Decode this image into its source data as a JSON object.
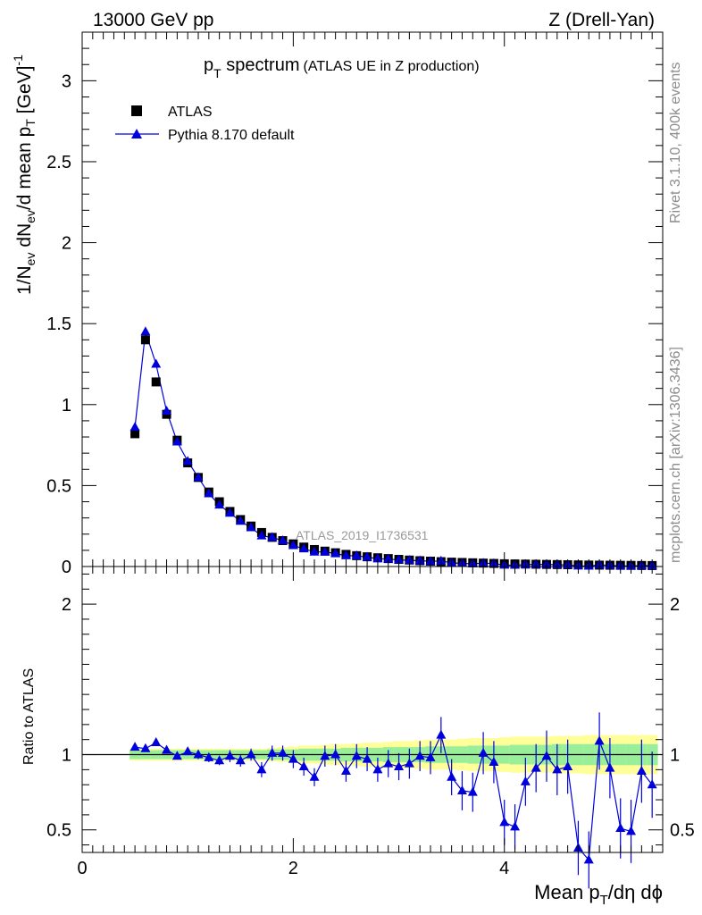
{
  "header": {
    "energy_label": "13000 GeV pp",
    "process_label": "Z (Drell-Yan)"
  },
  "side": {
    "rivet_label": "Rivet 3.1.10,  400k events",
    "mcplots_label": "mcplots.cern.ch [arXiv:1306.3436]"
  },
  "chart_data": {
    "type": "scatter",
    "title_main": "p",
    "title_sub": "T",
    "title_rest": " spectrum",
    "title_note": "(ATLAS UE in Z production)",
    "analysis_label": "ATLAS_2019_I1736531",
    "xlabel": {
      "a": "Mean p",
      "sub": "T",
      "b": "/dη dϕ"
    },
    "ylabel": {
      "p1": "1/N",
      "s1": "ev",
      "p2": " dN",
      "s2": "ev",
      "p3": "/d mean p",
      "s3": "T",
      "p4": " [GeV]",
      "sup": "-1"
    },
    "ratio_ylabel": "Ratio to ATLAS",
    "xlim": [
      0,
      5.5
    ],
    "ylim": [
      0,
      3.3
    ],
    "ratio_ylim": [
      0.35,
      2.25
    ],
    "xticks": [
      {
        "v": 0,
        "label": "0"
      },
      {
        "v": 2,
        "label": "2"
      },
      {
        "v": 4,
        "label": "4"
      }
    ],
    "yticks": [
      {
        "v": 0,
        "label": "0"
      },
      {
        "v": 0.5,
        "label": "0.5"
      },
      {
        "v": 1,
        "label": "1"
      },
      {
        "v": 1.5,
        "label": "1.5"
      },
      {
        "v": 2,
        "label": "2"
      },
      {
        "v": 2.5,
        "label": "2.5"
      },
      {
        "v": 3,
        "label": "3"
      }
    ],
    "ratio_yticks": [
      {
        "v": 0.5,
        "label": "0.5"
      },
      {
        "v": 1,
        "label": "1"
      },
      {
        "v": 2,
        "label": "2"
      }
    ],
    "legend": [
      {
        "name": "ATLAS",
        "marker": "square",
        "color": "#000000"
      },
      {
        "name": "Pythia 8.170 default",
        "marker": "triangle",
        "color": "#0000dd"
      }
    ],
    "x": [
      0.5,
      0.6,
      0.7,
      0.8,
      0.9,
      1.0,
      1.1,
      1.2,
      1.3,
      1.4,
      1.5,
      1.6,
      1.7,
      1.8,
      1.9,
      2.0,
      2.1,
      2.2,
      2.3,
      2.4,
      2.5,
      2.6,
      2.7,
      2.8,
      2.9,
      3.0,
      3.1,
      3.2,
      3.3,
      3.4,
      3.5,
      3.6,
      3.7,
      3.8,
      3.9,
      4.0,
      4.1,
      4.2,
      4.3,
      4.4,
      4.5,
      4.6,
      4.7,
      4.8,
      4.9,
      5.0,
      5.1,
      5.2,
      5.3,
      5.4
    ],
    "series": [
      {
        "name": "ATLAS",
        "values": [
          0.82,
          1.4,
          1.14,
          0.94,
          0.78,
          0.64,
          0.55,
          0.46,
          0.4,
          0.34,
          0.29,
          0.25,
          0.21,
          0.18,
          0.16,
          0.14,
          0.12,
          0.105,
          0.095,
          0.085,
          0.075,
          0.067,
          0.06,
          0.054,
          0.049,
          0.044,
          0.04,
          0.036,
          0.033,
          0.03,
          0.027,
          0.025,
          0.023,
          0.021,
          0.019,
          0.017,
          0.016,
          0.015,
          0.014,
          0.013,
          0.012,
          0.011,
          0.01,
          0.009,
          0.0085,
          0.008,
          0.0075,
          0.007,
          0.0065,
          0.006
        ]
      },
      {
        "name": "Pythia 8.170 default",
        "values": [
          0.86,
          1.45,
          1.25,
          0.96,
          0.77,
          0.65,
          0.55,
          0.45,
          0.38,
          0.33,
          0.28,
          0.24,
          0.19,
          0.18,
          0.16,
          0.13,
          0.11,
          0.09,
          0.09,
          0.08,
          0.067,
          0.066,
          0.058,
          0.048,
          0.046,
          0.041,
          0.038,
          0.036,
          0.032,
          0.034,
          0.023,
          0.019,
          0.017,
          0.021,
          0.018,
          0.009,
          0.008,
          0.012,
          0.013,
          0.013,
          0.011,
          0.01,
          0.004,
          0.003,
          0.0099,
          0.007,
          0.0038,
          0.0034,
          0.0058,
          0.0048
        ]
      }
    ],
    "ratio": [
      1.05,
      1.04,
      1.08,
      1.03,
      0.99,
      1.02,
      1.0,
      0.98,
      0.96,
      0.99,
      0.96,
      1.0,
      0.9,
      1.01,
      1.01,
      0.97,
      0.92,
      0.85,
      0.99,
      1.0,
      0.89,
      0.99,
      0.97,
      0.9,
      0.94,
      0.92,
      0.94,
      0.99,
      0.98,
      1.13,
      0.85,
      0.76,
      0.75,
      1.01,
      0.95,
      0.55,
      0.52,
      0.82,
      0.91,
      0.99,
      0.9,
      0.92,
      0.38,
      0.3,
      1.09,
      0.91,
      0.51,
      0.49,
      0.89,
      0.8
    ],
    "ratio_err": [
      0.02,
      0.02,
      0.02,
      0.02,
      0.02,
      0.02,
      0.03,
      0.03,
      0.03,
      0.04,
      0.04,
      0.04,
      0.05,
      0.05,
      0.05,
      0.06,
      0.06,
      0.06,
      0.07,
      0.07,
      0.07,
      0.08,
      0.08,
      0.08,
      0.09,
      0.09,
      0.1,
      0.1,
      0.11,
      0.12,
      0.12,
      0.13,
      0.13,
      0.14,
      0.14,
      0.15,
      0.15,
      0.16,
      0.16,
      0.17,
      0.17,
      0.18,
      0.18,
      0.19,
      0.19,
      0.2,
      0.2,
      0.21,
      0.21,
      0.22
    ],
    "band_inner": [
      0.03,
      0.03,
      0.03,
      0.03,
      0.03,
      0.03,
      0.03,
      0.03,
      0.03,
      0.03,
      0.03,
      0.03,
      0.03,
      0.035,
      0.035,
      0.035,
      0.04,
      0.04,
      0.04,
      0.04,
      0.045,
      0.045,
      0.045,
      0.045,
      0.05,
      0.05,
      0.05,
      0.05,
      0.055,
      0.055,
      0.055,
      0.055,
      0.06,
      0.06,
      0.06,
      0.06,
      0.065,
      0.065,
      0.065,
      0.065,
      0.07,
      0.07,
      0.07,
      0.07,
      0.07,
      0.07,
      0.07,
      0.07,
      0.07,
      0.07
    ],
    "band_outer": [
      0.04,
      0.04,
      0.04,
      0.04,
      0.04,
      0.04,
      0.04,
      0.04,
      0.04,
      0.04,
      0.04,
      0.04,
      0.04,
      0.045,
      0.05,
      0.055,
      0.06,
      0.06,
      0.065,
      0.07,
      0.07,
      0.075,
      0.08,
      0.08,
      0.085,
      0.09,
      0.09,
      0.095,
      0.1,
      0.1,
      0.1,
      0.105,
      0.11,
      0.11,
      0.11,
      0.115,
      0.12,
      0.12,
      0.12,
      0.12,
      0.125,
      0.125,
      0.125,
      0.13,
      0.13,
      0.13,
      0.13,
      0.13,
      0.13,
      0.13
    ],
    "colors": {
      "data": "#000000",
      "mc": "#0000dd",
      "band_inner": "#99ee99",
      "band_outer": "#ffff99"
    }
  }
}
